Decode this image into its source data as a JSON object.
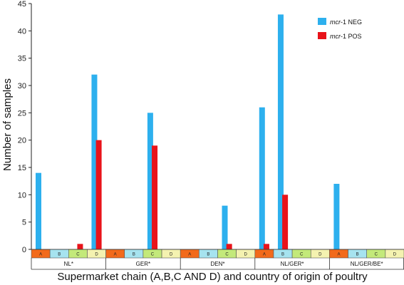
{
  "chart_data": {
    "type": "bar",
    "ylabel": "Number of samples",
    "xlabel": "Supermarket chain (A,B,C AND D) and country of origin of poultry",
    "ylim": [
      0,
      45
    ],
    "yticks": [
      0,
      5,
      10,
      15,
      20,
      25,
      30,
      35,
      40,
      45
    ],
    "grid": false,
    "legend_position": "top-right",
    "groups": [
      {
        "label": "NL*",
        "chains": [
          "A",
          "B",
          "C",
          "D"
        ]
      },
      {
        "label": "GER*",
        "chains": [
          "A",
          "B",
          "C",
          "D"
        ]
      },
      {
        "label": "DEN*",
        "chains": [
          "A",
          "B",
          "C",
          "D"
        ]
      },
      {
        "label": "NL/GER*",
        "chains": [
          "A",
          "B",
          "C",
          "D"
        ]
      },
      {
        "label": "NL/GER/BE*",
        "chains": [
          "A",
          "B",
          "C",
          "D"
        ]
      }
    ],
    "chain_colors": {
      "A": "#f26a1b",
      "B": "#a6e3ef",
      "C": "#c3e97a",
      "D": "#f4f2b0"
    },
    "series": [
      {
        "name_prefix": "mcr",
        "name_suffix": "-1 NEG",
        "color": "#2db0ee",
        "values": [
          [
            14,
            0,
            0,
            32
          ],
          [
            0,
            0,
            25,
            0
          ],
          [
            0,
            0,
            8,
            0
          ],
          [
            26,
            43,
            0,
            0
          ],
          [
            12,
            0,
            0,
            0
          ]
        ]
      },
      {
        "name_prefix": "mcr",
        "name_suffix": "-1 POS",
        "color": "#e8131a",
        "values": [
          [
            0,
            0,
            1,
            20
          ],
          [
            0,
            0,
            19,
            0
          ],
          [
            0,
            0,
            1,
            0
          ],
          [
            1,
            10,
            0,
            0
          ],
          [
            0,
            0,
            0,
            0
          ]
        ]
      }
    ]
  }
}
